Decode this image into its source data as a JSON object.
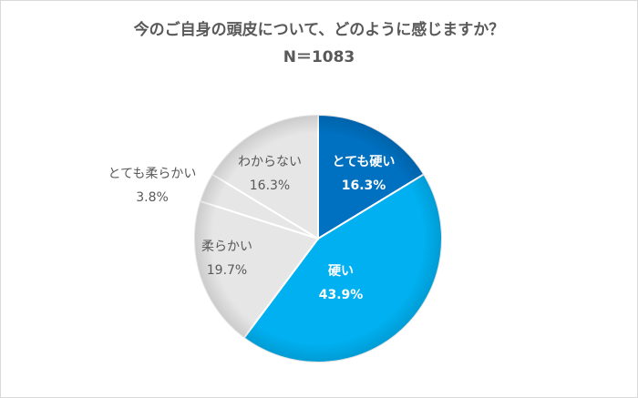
{
  "chart_data": {
    "type": "pie",
    "title": "今のご自身の頭皮について、どのように感じますか？",
    "subtitle": "N＝1083",
    "start_angle_deg": 0,
    "direction": "clockwise",
    "slices": [
      {
        "label": "とても硬い",
        "value": 16.3,
        "display": "16.3%",
        "color": "#0070c0"
      },
      {
        "label": "硬い",
        "value": 43.9,
        "display": "43.9%",
        "color": "#00b0f0"
      },
      {
        "label": "柔らかい",
        "value": 19.7,
        "display": "19.7%",
        "color": "#e7e6e6"
      },
      {
        "label": "とても柔らかい",
        "value": 3.8,
        "display": "3.8%",
        "color": "#e7e6e6"
      },
      {
        "label": "わからない",
        "value": 16.3,
        "display": "16.3%",
        "color": "#e7e6e6"
      }
    ],
    "legend": "none",
    "data_labels": "inside (とても柔らかい outside)"
  }
}
